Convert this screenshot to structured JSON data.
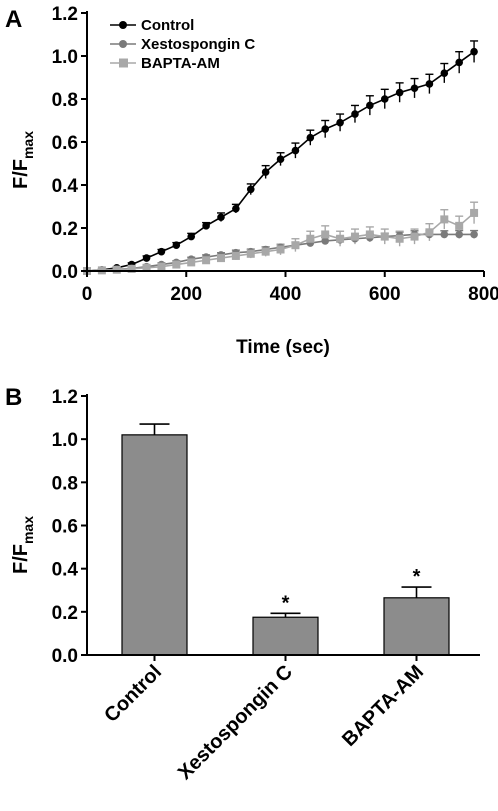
{
  "chart_data": [
    {
      "panel": "A",
      "type": "line",
      "xlabel": "Time (sec)",
      "ylabel": "F/F",
      "ylabel_sub": "max",
      "xlim": [
        0,
        800
      ],
      "ylim": [
        0,
        1.2
      ],
      "xticks": [
        0,
        200,
        400,
        600,
        800
      ],
      "yticks": [
        0.0,
        0.2,
        0.4,
        0.6,
        0.8,
        1.0,
        1.2
      ],
      "legend_position": "top-left",
      "x": [
        0,
        30,
        60,
        90,
        120,
        150,
        180,
        210,
        240,
        270,
        300,
        330,
        360,
        390,
        420,
        450,
        480,
        510,
        540,
        570,
        600,
        630,
        660,
        690,
        720,
        750,
        780
      ],
      "series": [
        {
          "name": "Control",
          "marker": "circle",
          "color": "#000000",
          "values": [
            0.0,
            0.005,
            0.015,
            0.03,
            0.06,
            0.09,
            0.12,
            0.16,
            0.21,
            0.25,
            0.29,
            0.38,
            0.46,
            0.52,
            0.56,
            0.62,
            0.66,
            0.69,
            0.73,
            0.77,
            0.8,
            0.83,
            0.85,
            0.87,
            0.92,
            0.97,
            1.02
          ],
          "errors": [
            0,
            0.005,
            0.005,
            0.008,
            0.01,
            0.01,
            0.012,
            0.015,
            0.015,
            0.02,
            0.02,
            0.025,
            0.03,
            0.03,
            0.035,
            0.035,
            0.04,
            0.04,
            0.04,
            0.045,
            0.045,
            0.045,
            0.045,
            0.045,
            0.045,
            0.05,
            0.05
          ]
        },
        {
          "name": "Xestospongin C",
          "marker": "circle",
          "color": "#7a7a7a",
          "values": [
            0.0,
            0.004,
            0.008,
            0.012,
            0.02,
            0.03,
            0.04,
            0.055,
            0.065,
            0.075,
            0.085,
            0.09,
            0.1,
            0.11,
            0.12,
            0.13,
            0.14,
            0.145,
            0.15,
            0.155,
            0.16,
            0.165,
            0.17,
            0.17,
            0.17,
            0.17,
            0.17
          ],
          "errors": [
            0,
            0.004,
            0.005,
            0.006,
            0.007,
            0.008,
            0.008,
            0.009,
            0.01,
            0.01,
            0.012,
            0.012,
            0.013,
            0.013,
            0.014,
            0.014,
            0.015,
            0.015,
            0.015,
            0.016,
            0.016,
            0.016,
            0.017,
            0.017,
            0.017,
            0.018,
            0.018
          ]
        },
        {
          "name": "BAPTA-AM",
          "marker": "square",
          "color": "#a8a8a8",
          "values": [
            0.0,
            0.003,
            0.006,
            0.01,
            0.015,
            0.02,
            0.03,
            0.04,
            0.05,
            0.06,
            0.07,
            0.08,
            0.09,
            0.1,
            0.12,
            0.15,
            0.17,
            0.15,
            0.16,
            0.17,
            0.16,
            0.15,
            0.16,
            0.18,
            0.24,
            0.21,
            0.27
          ],
          "errors": [
            0,
            0.004,
            0.005,
            0.006,
            0.007,
            0.008,
            0.009,
            0.01,
            0.012,
            0.015,
            0.018,
            0.02,
            0.022,
            0.025,
            0.03,
            0.035,
            0.04,
            0.035,
            0.035,
            0.035,
            0.035,
            0.035,
            0.035,
            0.04,
            0.045,
            0.045,
            0.05
          ]
        }
      ]
    },
    {
      "panel": "B",
      "type": "bar",
      "ylabel": "F/F",
      "ylabel_sub": "max",
      "ylim": [
        0,
        1.2
      ],
      "yticks": [
        0.0,
        0.2,
        0.4,
        0.6,
        0.8,
        1.0,
        1.2
      ],
      "categories": [
        "Control",
        "Xestospongin C",
        "BAPTA-AM"
      ],
      "values": [
        1.02,
        0.175,
        0.265
      ],
      "errors": [
        0.05,
        0.018,
        0.05
      ],
      "significance": [
        "",
        "*",
        "*"
      ],
      "bar_color": "#8c8c8c"
    }
  ]
}
